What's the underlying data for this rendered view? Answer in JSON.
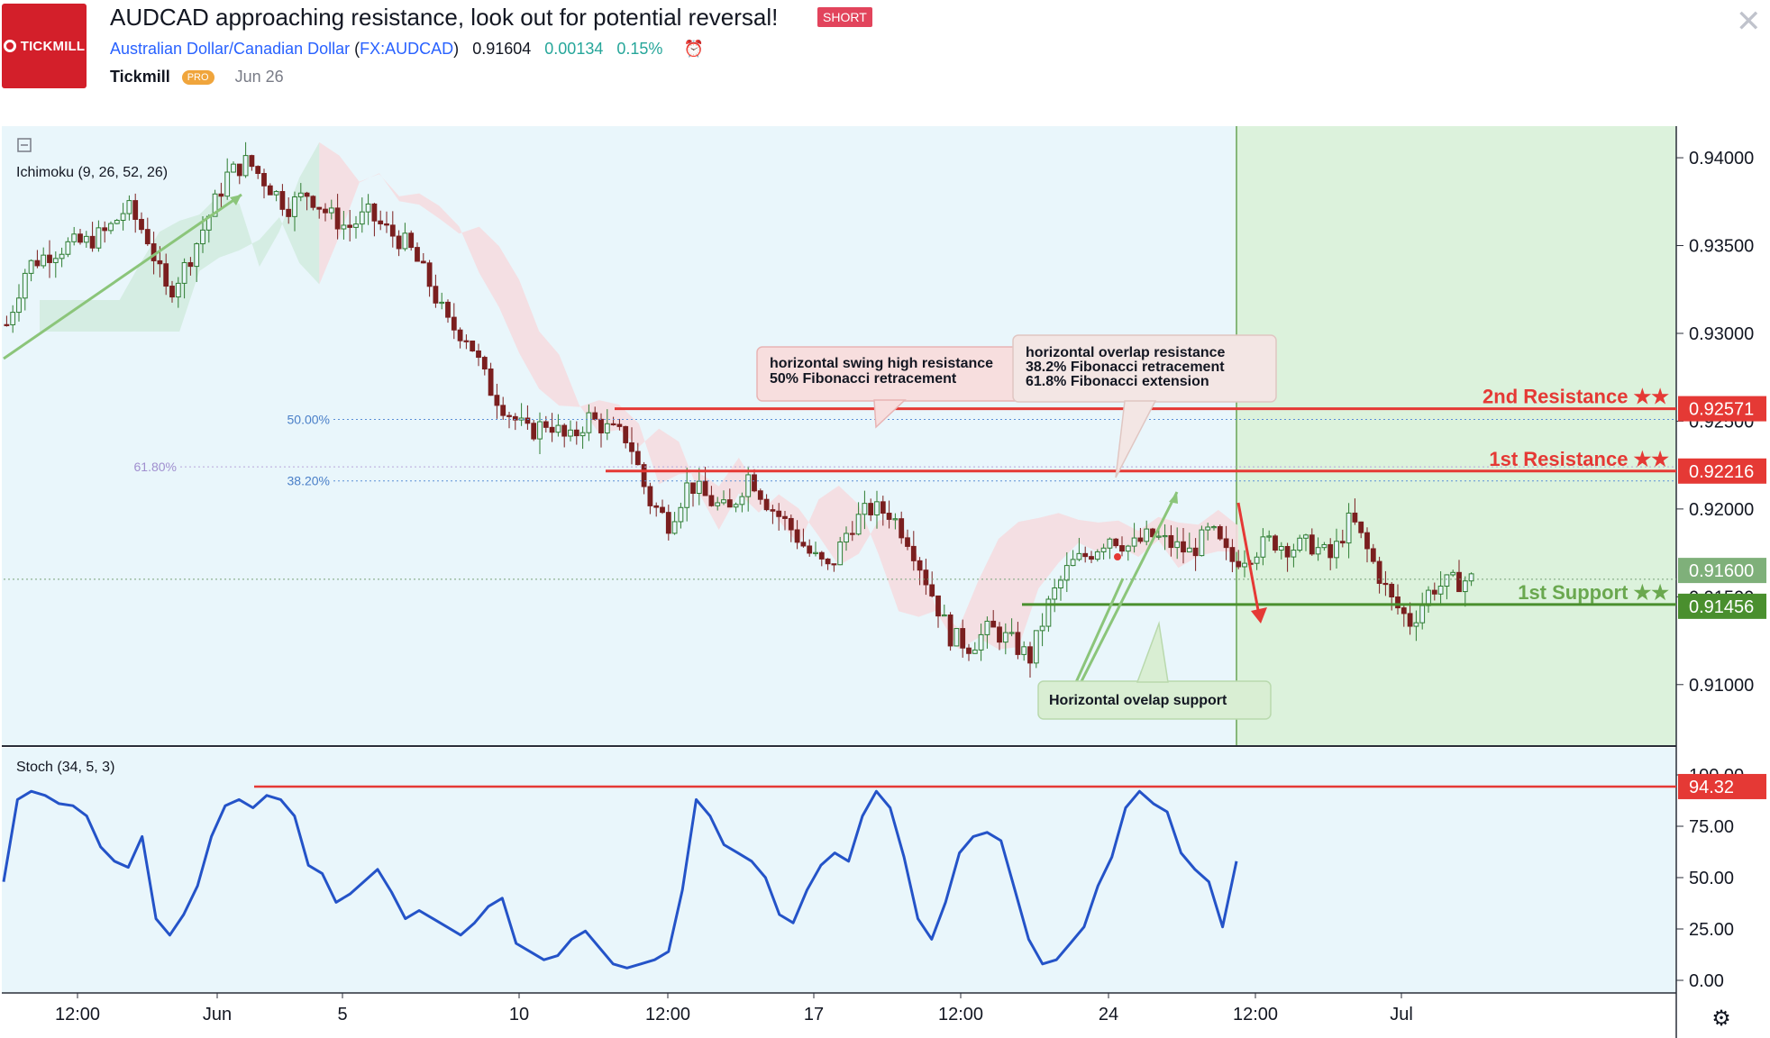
{
  "header": {
    "logo_text": "TICKMILL",
    "title": "AUDCAD approaching resistance, look out for potential reversal!",
    "badge": "SHORT",
    "symbol_name": "Australian Dollar/Canadian Dollar",
    "symbol_ticker": "FX:AUDCAD",
    "price": "0.91604",
    "change": "0.00134",
    "change_pct": "0.15%",
    "author": "Tickmill",
    "author_badge": "PRO",
    "date": "Jun 26"
  },
  "colors": {
    "pane_bg": "#e9f6fb",
    "forecast_bg": "#dcf2dc",
    "resistance": "#e53935",
    "support": "#4a8f2e",
    "support_label": "#6aa84f",
    "stoch_line": "#2453c8",
    "candle_up": "#2e7d32",
    "candle_down": "#7a1f1f",
    "cloud_green": "#d3ece0",
    "cloud_red": "#f5dde0"
  },
  "chart_data": [
    {
      "type": "candlestick",
      "indicator_label": "Ichimoku (9, 26, 52, 26)",
      "y_ticks": [
        "0.94000",
        "0.93500",
        "0.93000",
        "0.92500",
        "0.92000",
        "0.91500",
        "0.91000"
      ],
      "ylim": [
        0.9065,
        0.9418
      ],
      "x_ticks": [
        "12:00",
        "Jun",
        "5",
        "10",
        "12:00",
        "17",
        "12:00",
        "24",
        "12:00",
        "Jul"
      ],
      "close_series": [
        0.9305,
        0.9338,
        0.9345,
        0.935,
        0.9352,
        0.9358,
        0.9372,
        0.9355,
        0.9322,
        0.934,
        0.9365,
        0.939,
        0.9398,
        0.9385,
        0.9372,
        0.938,
        0.9368,
        0.936,
        0.9368,
        0.9358,
        0.935,
        0.933,
        0.9305,
        0.9298,
        0.927,
        0.9255,
        0.9243,
        0.925,
        0.9238,
        0.9252,
        0.9245,
        0.924,
        0.9205,
        0.9192,
        0.9215,
        0.9205,
        0.9198,
        0.922,
        0.9202,
        0.919,
        0.9175,
        0.9165,
        0.919,
        0.92,
        0.9198,
        0.9182,
        0.9155,
        0.9128,
        0.9122,
        0.9132,
        0.9125,
        0.9115,
        0.9148,
        0.9168,
        0.9175,
        0.9185,
        0.9178,
        0.9185,
        0.918,
        0.9175,
        0.9188,
        0.917,
        0.9175,
        0.9182,
        0.9178,
        0.918,
        0.9172,
        0.9195,
        0.9172,
        0.9148,
        0.9135,
        0.9155,
        0.9158,
        0.916
      ],
      "price_labels": [
        {
          "label": "2nd Resistance ★★",
          "value": 0.92571,
          "text": "0.92571"
        },
        {
          "label": "1st Resistance ★★",
          "value": 0.92216,
          "text": "0.92216"
        },
        {
          "label": "1st Support ★★",
          "value": 0.91456,
          "text": "0.91456"
        }
      ],
      "last_price": {
        "value": 0.916,
        "text": "0.91600"
      },
      "fib_levels": [
        {
          "label": "50.00%",
          "value": 0.9251
        },
        {
          "label": "61.80%",
          "value": 0.9224
        },
        {
          "label": "38.20%",
          "value": 0.9216
        }
      ],
      "annotations": [
        {
          "lines": [
            "horizontal swing high resistance",
            "50% Fibonacci retracement"
          ]
        },
        {
          "lines": [
            "horizontal overlap resistance",
            "38.2% Fibonacci retracement",
            "61.8% Fibonacci extension"
          ]
        },
        {
          "lines": [
            "Horizontal ovelap support"
          ]
        }
      ]
    },
    {
      "type": "line",
      "indicator_label": "Stoch (34, 5, 3)",
      "y_ticks": [
        "100.00",
        "75.00",
        "50.00",
        "25.00",
        "0.00"
      ],
      "ylim": [
        0,
        100
      ],
      "level": {
        "value": 94.32,
        "text": "94.32"
      },
      "values": [
        48,
        88,
        92,
        90,
        86,
        85,
        80,
        65,
        58,
        55,
        70,
        30,
        22,
        32,
        46,
        70,
        85,
        88,
        84,
        90,
        88,
        80,
        56,
        52,
        38,
        42,
        48,
        54,
        43,
        30,
        34,
        30,
        26,
        22,
        28,
        36,
        40,
        18,
        14,
        10,
        12,
        20,
        24,
        16,
        8,
        6,
        8,
        10,
        14,
        44,
        88,
        80,
        66,
        62,
        58,
        50,
        32,
        28,
        44,
        56,
        62,
        58,
        80,
        92,
        84,
        60,
        30,
        20,
        38,
        62,
        70,
        72,
        68,
        44,
        20,
        8,
        10,
        18,
        26,
        46,
        60,
        84,
        92,
        86,
        82,
        62,
        54,
        48,
        26,
        58
      ]
    }
  ]
}
